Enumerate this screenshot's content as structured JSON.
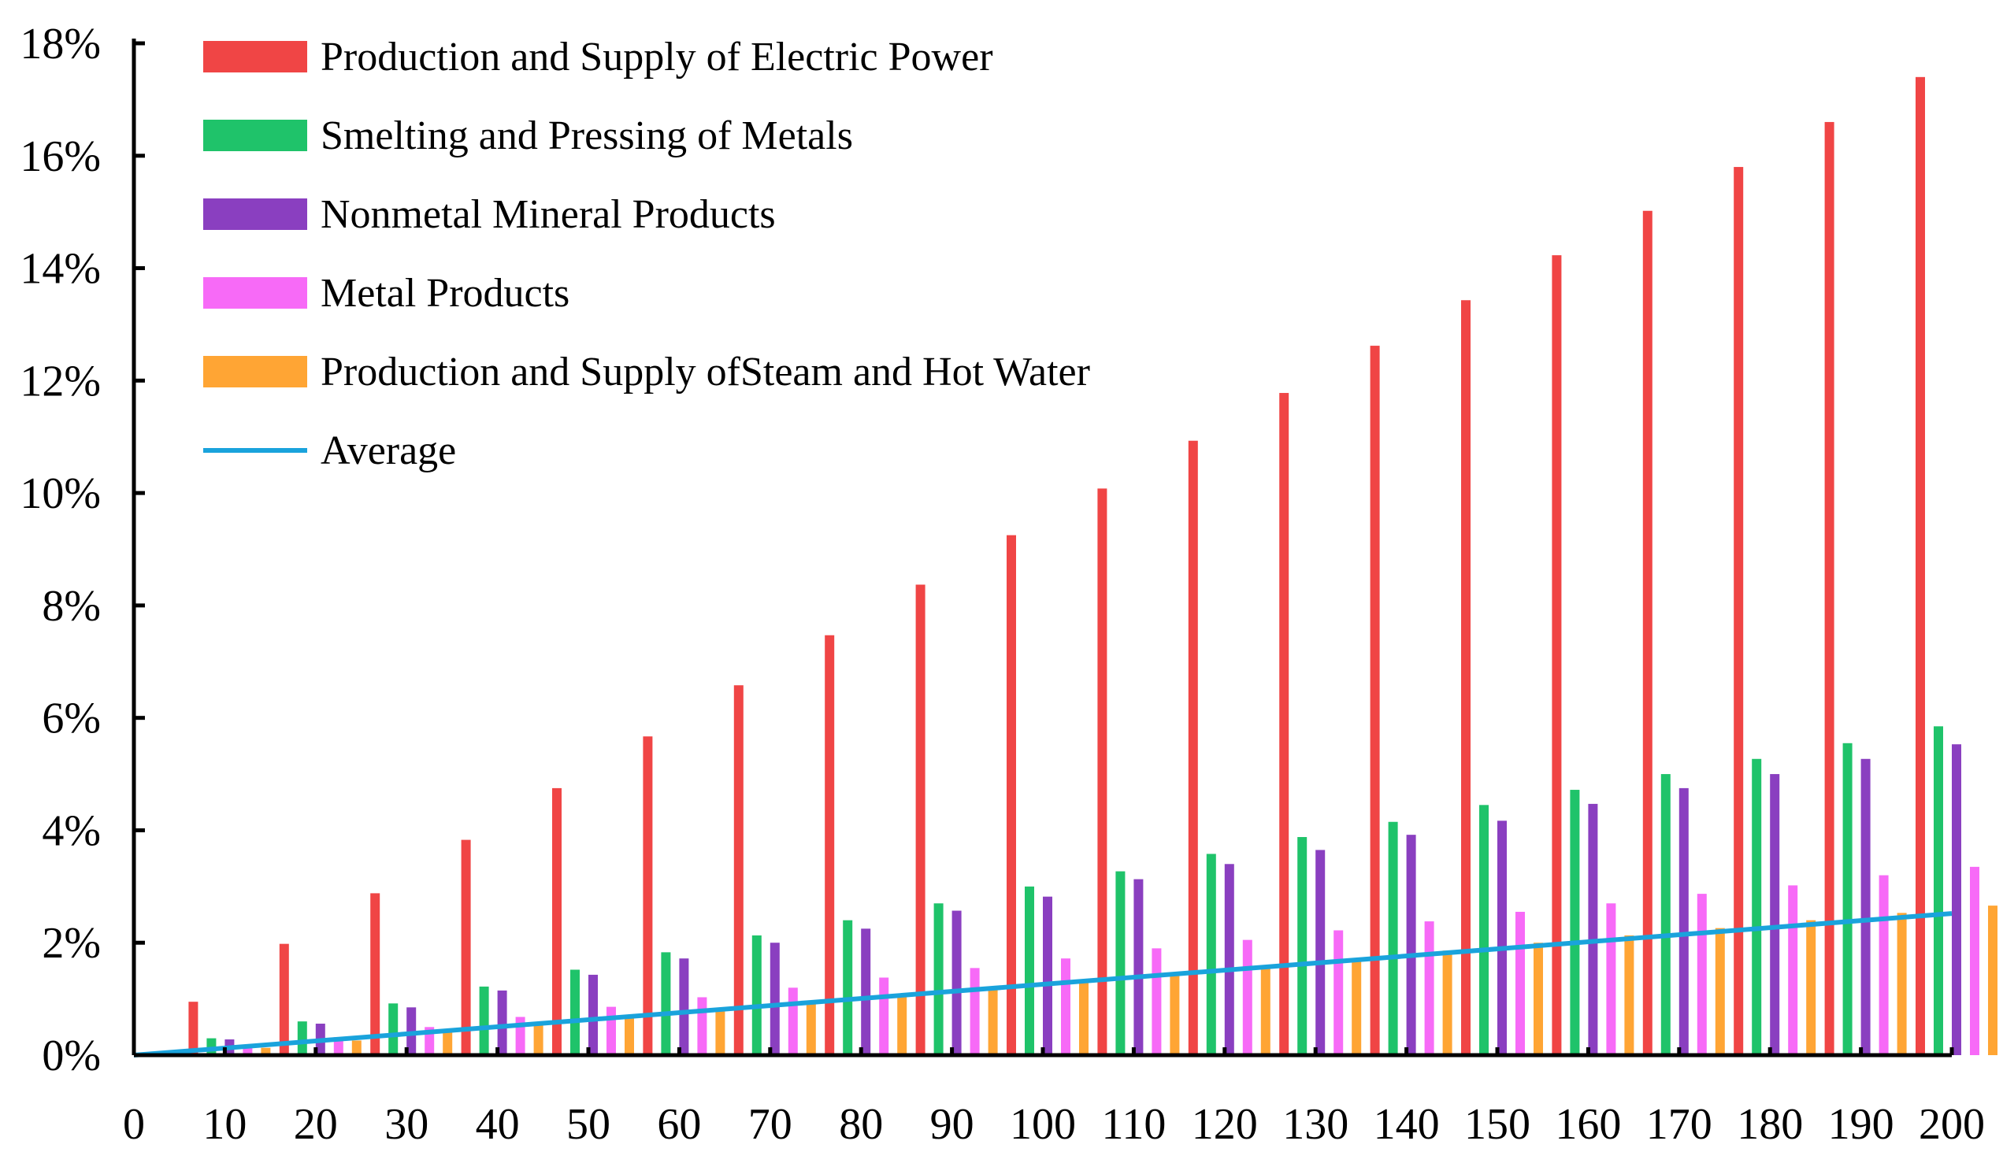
{
  "chart_data": {
    "type": "bar",
    "title": "",
    "xlabel": "",
    "ylabel": "",
    "x_ticks": [
      "0",
      "10",
      "20",
      "30",
      "40",
      "50",
      "60",
      "70",
      "80",
      "90",
      "100",
      "110",
      "120",
      "130",
      "140",
      "150",
      "160",
      "170",
      "180",
      "190",
      "200"
    ],
    "categories": [
      10,
      20,
      30,
      40,
      50,
      60,
      70,
      80,
      90,
      100,
      110,
      120,
      130,
      140,
      150,
      160,
      170,
      180,
      190,
      200
    ],
    "xlim": [
      0,
      200
    ],
    "ylim": [
      0,
      18
    ],
    "y_ticks": [
      "0%",
      "2%",
      "4%",
      "6%",
      "8%",
      "10%",
      "12%",
      "14%",
      "16%",
      "18%"
    ],
    "grid": false,
    "legend_position": "top-left",
    "series": [
      {
        "name": "Production and Supply of Electric Power",
        "color": "#f04545",
        "values": [
          0.95,
          1.98,
          2.88,
          3.83,
          4.75,
          5.67,
          6.58,
          7.47,
          8.37,
          9.25,
          10.08,
          10.93,
          11.78,
          12.62,
          13.43,
          14.23,
          15.02,
          15.8,
          16.6,
          17.4
        ]
      },
      {
        "name": "Smelting and Pressing of  Metals",
        "color": "#1fc36a",
        "values": [
          0.3,
          0.6,
          0.92,
          1.22,
          1.52,
          1.83,
          2.13,
          2.4,
          2.7,
          3.0,
          3.27,
          3.58,
          3.88,
          4.15,
          4.45,
          4.72,
          5.0,
          5.27,
          5.55,
          5.85
        ]
      },
      {
        "name": "Nonmetal Mineral Products",
        "color": "#8a3fc0",
        "values": [
          0.28,
          0.56,
          0.85,
          1.15,
          1.43,
          1.72,
          2.0,
          2.25,
          2.57,
          2.82,
          3.13,
          3.4,
          3.65,
          3.92,
          4.17,
          4.47,
          4.75,
          5.0,
          5.27,
          5.53
        ]
      },
      {
        "name": "Metal Products",
        "color": "#f76af7",
        "values": [
          0.16,
          0.32,
          0.5,
          0.68,
          0.86,
          1.03,
          1.2,
          1.38,
          1.55,
          1.72,
          1.9,
          2.05,
          2.22,
          2.38,
          2.55,
          2.7,
          2.87,
          3.02,
          3.2,
          3.35
        ]
      },
      {
        "name": "Production and Supply ofSteam and Hot Water",
        "color": "#ffa534",
        "values": [
          0.13,
          0.26,
          0.4,
          0.53,
          0.66,
          0.8,
          0.93,
          1.07,
          1.2,
          1.33,
          1.46,
          1.6,
          1.73,
          1.86,
          2.0,
          2.13,
          2.26,
          2.4,
          2.53,
          2.66
        ]
      }
    ],
    "line_series": {
      "name": "Average",
      "color": "#1aa3dc",
      "x": [
        0,
        200
      ],
      "y": [
        0,
        2.52
      ]
    }
  }
}
